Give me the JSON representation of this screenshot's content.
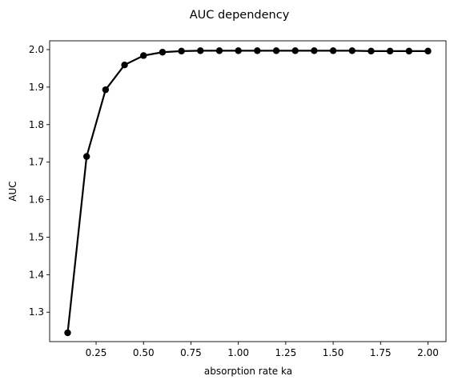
{
  "chart_data": {
    "type": "line",
    "title": "AUC dependency",
    "xlabel": "absorption rate ka",
    "ylabel": "AUC",
    "xlim": [
      0.005,
      2.095
    ],
    "ylim": [
      1.2216,
      2.0234
    ],
    "grid": false,
    "x_ticks": [
      0.25,
      0.5,
      0.75,
      1.0,
      1.25,
      1.5,
      1.75,
      2.0
    ],
    "x_tick_labels": [
      "0.25",
      "0.50",
      "0.75",
      "1.00",
      "1.25",
      "1.50",
      "1.75",
      "2.00"
    ],
    "y_ticks": [
      1.3,
      1.4,
      1.5,
      1.6,
      1.7,
      1.8,
      1.9,
      2.0
    ],
    "y_tick_labels": [
      "1.3",
      "1.4",
      "1.5",
      "1.6",
      "1.7",
      "1.8",
      "1.9",
      "2.0"
    ],
    "series": [
      {
        "color": "#000000",
        "marker": "circle",
        "x": [
          0.1,
          0.2,
          0.3,
          0.4,
          0.5,
          0.6,
          0.7,
          0.8,
          0.9,
          1.0,
          1.1,
          1.2,
          1.3,
          1.4,
          1.5,
          1.6,
          1.7,
          1.8,
          1.9,
          2.0
        ],
        "y": [
          1.245,
          1.715,
          1.893,
          1.959,
          1.984,
          1.993,
          1.996,
          1.997,
          1.997,
          1.997,
          1.997,
          1.997,
          1.997,
          1.997,
          1.997,
          1.997,
          1.996,
          1.996,
          1.996,
          1.996
        ]
      }
    ]
  }
}
